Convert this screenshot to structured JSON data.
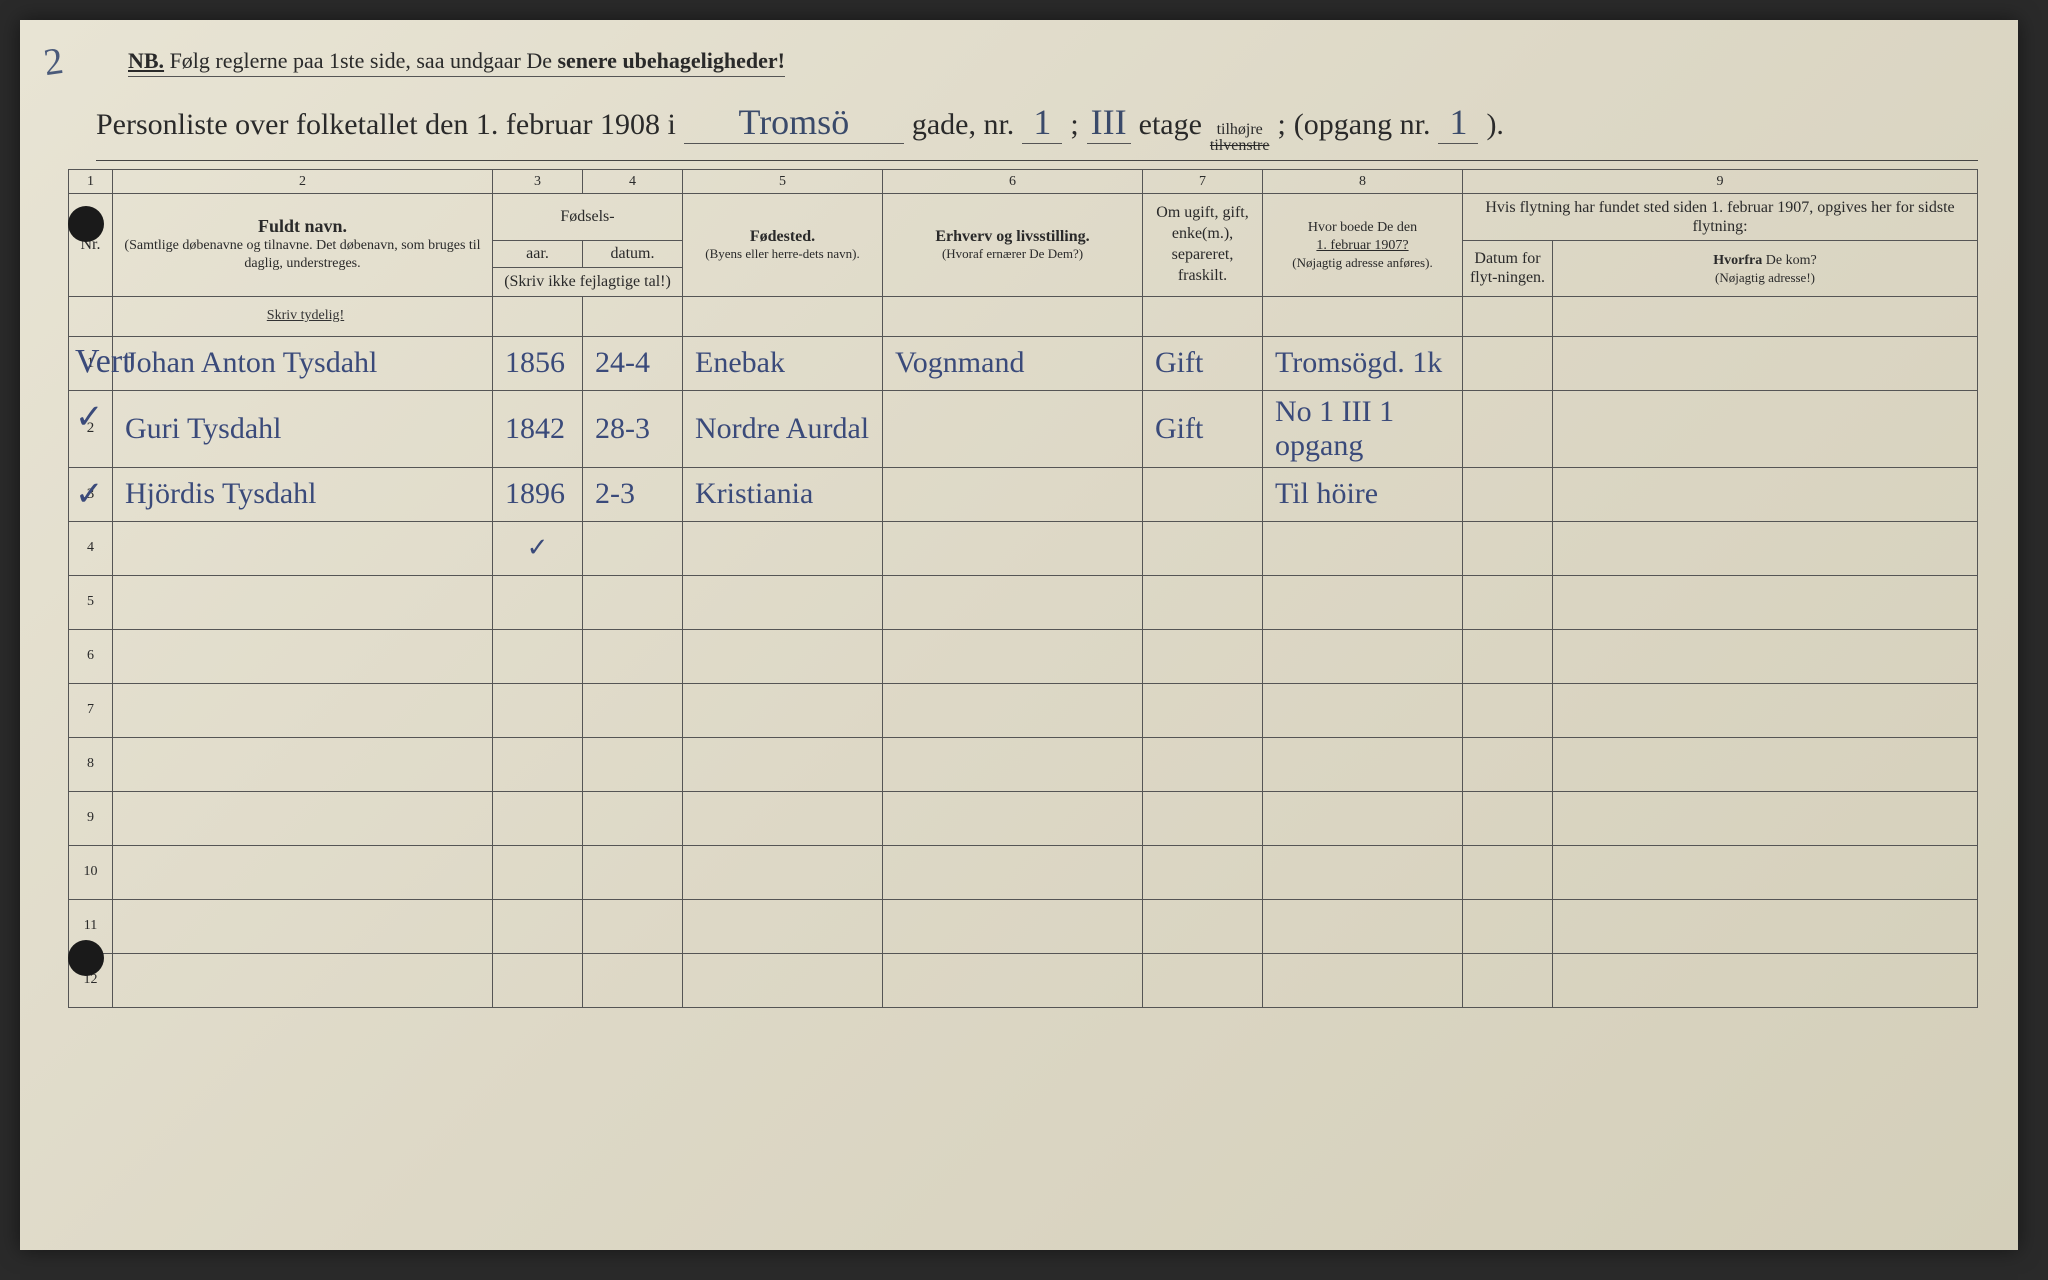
{
  "page_corner_number": "2",
  "nb": {
    "prefix": "NB.",
    "text_a": "Følg reglerne paa 1ste side, saa undgaar De ",
    "text_b": "senere ubehageligheder!"
  },
  "title": {
    "lead": "Personliste over folketallet den 1. februar 1908 i",
    "street_hand": "Tromsö",
    "street_label": "gade, nr.",
    "street_nr_hand": "1",
    "semi": ";",
    "floor_hand": "III",
    "floor_label": "etage",
    "side_top": "tilhøjre",
    "side_bottom": "tilvenstre",
    "semi2": ";",
    "entrance_label": "(opgang nr.",
    "entrance_hand": "1",
    "close": ")."
  },
  "columns": {
    "nums": [
      "1",
      "2",
      "3",
      "4",
      "5",
      "6",
      "7",
      "8",
      "9"
    ],
    "nr": "Nr.",
    "name_bold": "Fuldt",
    "name_rest": " navn.",
    "name_sub": "(Samtlige døbenavne og tilnavne. Det døbenavn, som bruges til daglig, understreges.",
    "birth_group": "Fødsels-",
    "year": "aar.",
    "date": "datum.",
    "birth_note": "(Skriv ikke fejlagtige tal!)",
    "place_bold": "Fødested.",
    "place_sub": "(Byens eller herre-dets navn).",
    "occ_bold": "Erhverv og livsstilling.",
    "occ_sub": "(Hvoraf ernærer De Dem?)",
    "status": "Om ugift, gift, enke(m.), separeret, fraskilt.",
    "prev_a": "Hvor boede De den",
    "prev_b": "1. februar 1907?",
    "prev_sub": "(Nøjagtig adresse anføres).",
    "move_intro": "Hvis flytning har fundet sted siden 1. februar 1907, opgives her for sidste flytning:",
    "move_date": "Datum for flyt-ningen.",
    "move_from_a": "Hvorfra",
    "move_from_b": " De kom?",
    "move_from_sub": "(Nøjagtig adresse!)",
    "skriv": "Skriv tydelig!"
  },
  "rows": [
    {
      "nr": "1",
      "tick": "Vert",
      "name": "Johan Anton Tysdahl",
      "year": "1856",
      "date": "24-4",
      "place": "Enebak",
      "occ": "Vognmand",
      "status": "Gift",
      "prev": "Tromsögd. 1k"
    },
    {
      "nr": "2",
      "tick": "✓",
      "name": "Guri Tysdahl",
      "year": "1842",
      "date": "28-3",
      "place": "Nordre Aurdal",
      "occ": "",
      "status": "Gift",
      "prev": "No 1 III 1 opgang"
    },
    {
      "nr": "3",
      "tick": "✓",
      "name": "Hjördis Tysdahl",
      "year": "1896",
      "date": "2-3",
      "place": "Kristiania",
      "occ": "",
      "status": "",
      "prev": "Til höire"
    }
  ],
  "extra_mark_row4": "✓",
  "empty_rows": [
    "4",
    "5",
    "6",
    "7",
    "8",
    "9",
    "10",
    "11",
    "12"
  ],
  "colors": {
    "paper": "#e0dbc8",
    "ink_print": "#2a2a2a",
    "ink_hand": "#3a4a7a",
    "border": "#555555"
  }
}
